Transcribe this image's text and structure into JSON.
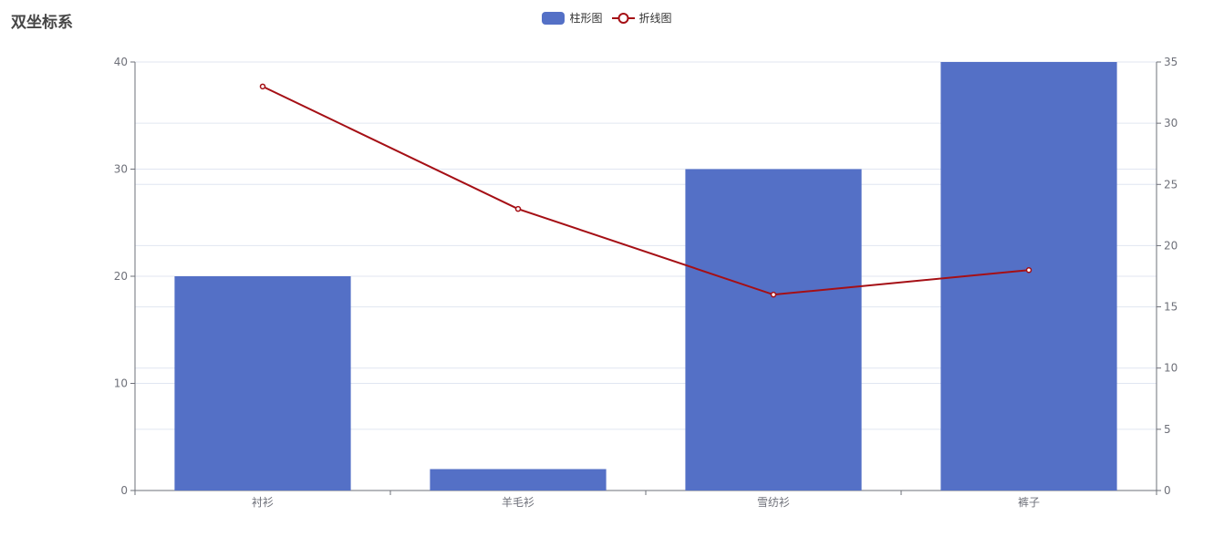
{
  "title": "双坐标系",
  "legend": [
    {
      "name": "柱形图",
      "type": "bar"
    },
    {
      "name": "折线图",
      "type": "line"
    }
  ],
  "colors": {
    "bar": "#5470c6",
    "line": "#a50f15",
    "axis": "#6e7079",
    "grid": "#e0e6f1"
  },
  "chart_data": {
    "type": "bar",
    "categories": [
      "衬衫",
      "羊毛衫",
      "雪纺衫",
      "裤子"
    ],
    "series": [
      {
        "name": "柱形图",
        "type": "bar",
        "yAxis": "left",
        "values": [
          20,
          2,
          30,
          40
        ]
      },
      {
        "name": "折线图",
        "type": "line",
        "yAxis": "right",
        "values": [
          33,
          23,
          16,
          18
        ]
      }
    ],
    "y_left": {
      "min": 0,
      "max": 40,
      "ticks": [
        0,
        10,
        20,
        30,
        40
      ]
    },
    "y_right": {
      "min": 0,
      "max": 35,
      "ticks": [
        0,
        5,
        10,
        15,
        20,
        25,
        30,
        35
      ]
    },
    "grid": true,
    "legend_position": "top-center"
  }
}
